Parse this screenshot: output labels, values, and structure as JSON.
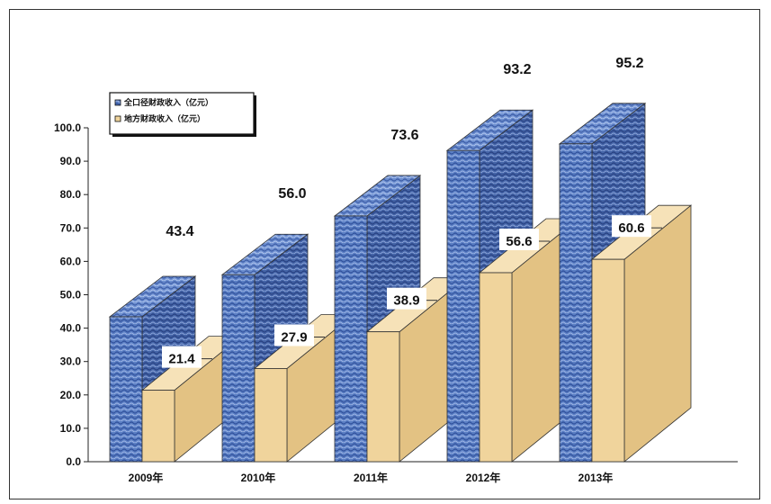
{
  "chart_data": {
    "type": "bar",
    "categories": [
      "2009年",
      "2010年",
      "2011年",
      "2012年",
      "2013年"
    ],
    "series": [
      {
        "name": "全口径财政收入（亿元）",
        "values": [
          43.4,
          56.0,
          73.6,
          93.2,
          95.2
        ],
        "color": "#4a6fb5"
      },
      {
        "name": "地方财政收入（亿元）",
        "values": [
          21.4,
          27.9,
          38.9,
          56.6,
          60.6
        ],
        "color": "#f0d49c"
      }
    ],
    "y_ticks": [
      "0.0",
      "10.0",
      "20.0",
      "30.0",
      "40.0",
      "50.0",
      "60.0",
      "70.0",
      "80.0",
      "90.0",
      "100.0"
    ],
    "ylim": [
      0,
      100
    ],
    "legend_position": "top-left",
    "style": "3d-column"
  }
}
